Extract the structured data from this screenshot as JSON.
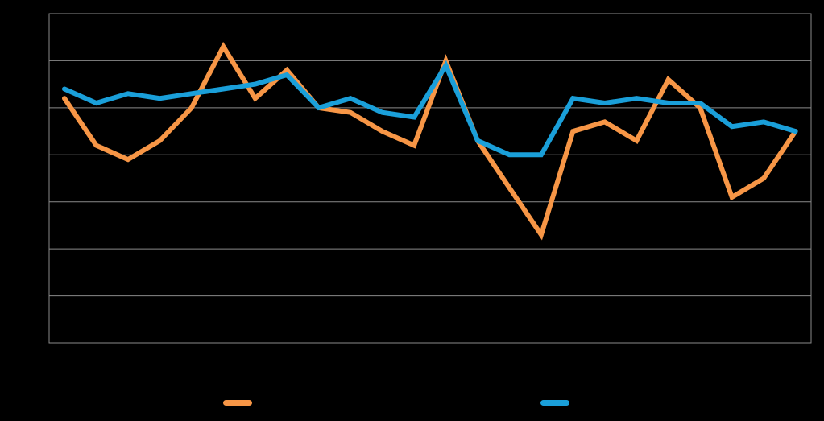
{
  "chart_data": {
    "type": "line",
    "title": "",
    "xlabel": "",
    "ylabel": "",
    "x": [
      1,
      2,
      3,
      4,
      5,
      6,
      7,
      8,
      9,
      10,
      11,
      12,
      13,
      14,
      15,
      16,
      17,
      18,
      19,
      20,
      21,
      22,
      23,
      24,
      25
    ],
    "ylim": [
      0,
      7
    ],
    "grid": true,
    "series": [
      {
        "name": "",
        "color": "#f79646",
        "values": [
          5.2,
          4.2,
          3.9,
          4.3,
          5.0,
          6.3,
          5.2,
          5.8,
          5.0,
          4.9,
          4.5,
          4.2,
          6.0,
          4.3,
          3.3,
          2.3,
          4.5,
          4.7,
          4.3,
          5.6,
          5.0,
          3.1,
          3.5,
          4.5,
          null
        ]
      },
      {
        "name": "",
        "color": "#1a9fd9",
        "values": [
          5.4,
          5.1,
          5.3,
          5.2,
          5.3,
          5.4,
          5.5,
          5.7,
          5.0,
          5.2,
          4.9,
          4.8,
          5.9,
          4.3,
          4.0,
          4.0,
          5.2,
          5.1,
          5.2,
          5.1,
          5.1,
          4.6,
          4.7,
          4.5,
          null
        ]
      }
    ],
    "legend": {
      "position": "bottom",
      "items": [
        {
          "label": "",
          "color": "#f79646"
        },
        {
          "label": "",
          "color": "#1a9fd9"
        }
      ]
    }
  }
}
